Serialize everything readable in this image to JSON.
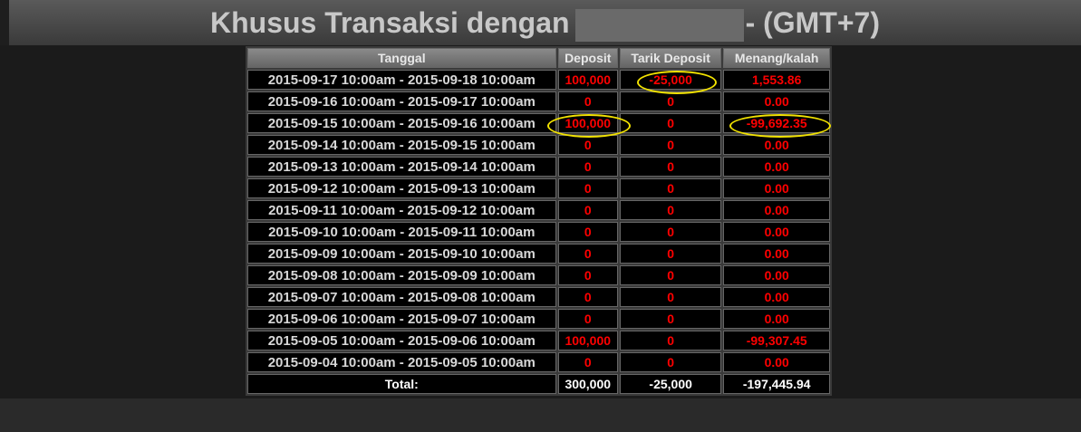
{
  "header": {
    "title_start": "Khusus Transaksi dengan",
    "title_end": "- (GMT+7)"
  },
  "table": {
    "columns": [
      "Tanggal",
      "Deposit",
      "Tarik Deposit",
      "Menang/kalah"
    ],
    "rows": [
      [
        "2015-09-17 10:00am - 2015-09-18 10:00am",
        "100,000",
        "-25,000",
        "1,553.86"
      ],
      [
        "2015-09-16 10:00am - 2015-09-17 10:00am",
        "0",
        "0",
        "0.00"
      ],
      [
        "2015-09-15 10:00am - 2015-09-16 10:00am",
        "100,000",
        "0",
        "-99,692.35"
      ],
      [
        "2015-09-14 10:00am - 2015-09-15 10:00am",
        "0",
        "0",
        "0.00"
      ],
      [
        "2015-09-13 10:00am - 2015-09-14 10:00am",
        "0",
        "0",
        "0.00"
      ],
      [
        "2015-09-12 10:00am - 2015-09-13 10:00am",
        "0",
        "0",
        "0.00"
      ],
      [
        "2015-09-11 10:00am - 2015-09-12 10:00am",
        "0",
        "0",
        "0.00"
      ],
      [
        "2015-09-10 10:00am - 2015-09-11 10:00am",
        "0",
        "0",
        "0.00"
      ],
      [
        "2015-09-09 10:00am - 2015-09-10 10:00am",
        "0",
        "0",
        "0.00"
      ],
      [
        "2015-09-08 10:00am - 2015-09-09 10:00am",
        "0",
        "0",
        "0.00"
      ],
      [
        "2015-09-07 10:00am - 2015-09-08 10:00am",
        "0",
        "0",
        "0.00"
      ],
      [
        "2015-09-06 10:00am - 2015-09-07 10:00am",
        "0",
        "0",
        "0.00"
      ],
      [
        "2015-09-05 10:00am - 2015-09-06 10:00am",
        "100,000",
        "0",
        "-99,307.45"
      ],
      [
        "2015-09-04 10:00am - 2015-09-05 10:00am",
        "0",
        "0",
        "0.00"
      ]
    ],
    "total": [
      "Total:",
      "300,000",
      "-25,000",
      "-197,445.94"
    ]
  }
}
